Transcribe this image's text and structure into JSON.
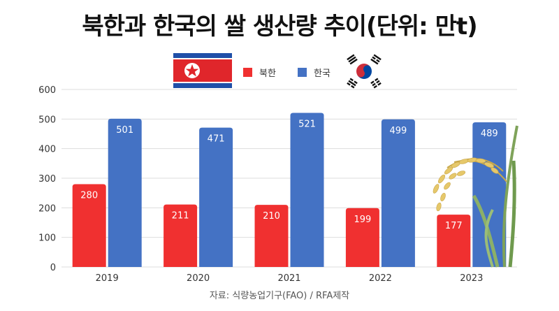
{
  "title": "북한과 한국의 쌀 생산량 추이(단위: 만t)",
  "source": "자료: 식량농업기구(FAO) / RFA제작",
  "legend": {
    "north_korea": "북한",
    "south_korea": "한국"
  },
  "colors": {
    "north_korea": "#f03030",
    "south_korea": "#4472c4",
    "grid": "#dddddd",
    "axis_text": "#333333"
  },
  "icons": {
    "north_korea_flag": "north-korea-flag-icon",
    "south_korea_flag": "south-korea-flag-icon",
    "rice_plant": "rice-plant-icon"
  },
  "chart_data": {
    "type": "bar",
    "title": "북한과 한국의 쌀 생산량 추이(단위: 만t)",
    "categories": [
      "2019",
      "2020",
      "2021",
      "2022",
      "2023"
    ],
    "series": [
      {
        "name": "북한",
        "values": [
          280,
          211,
          210,
          199,
          177
        ]
      },
      {
        "name": "한국",
        "values": [
          501,
          471,
          521,
          499,
          489
        ]
      }
    ],
    "ylim": [
      0,
      600
    ],
    "yticks": [
      0,
      100,
      200,
      300,
      400,
      500,
      600
    ],
    "grid": true,
    "legend_position": "top-center"
  }
}
